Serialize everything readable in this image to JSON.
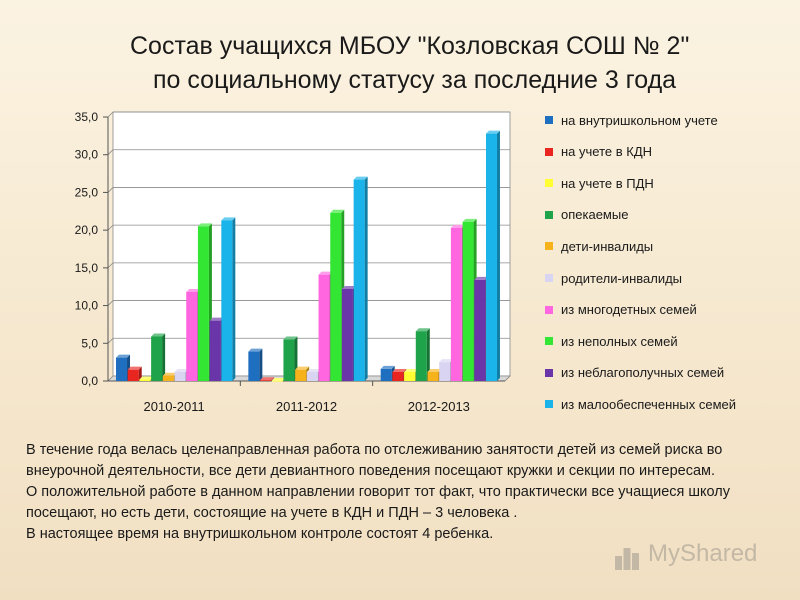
{
  "title": {
    "line1": "Состав  учащихся МБОУ \"Козловская СОШ № 2\"",
    "line2": "по социальному статусу за последние 3 года"
  },
  "chart_data": {
    "type": "bar",
    "categories": [
      "2010-2011",
      "2011-2012",
      "2012-2013"
    ],
    "ylim": [
      0,
      35
    ],
    "yticks": [
      0,
      5,
      10,
      15,
      20,
      25,
      30,
      35
    ],
    "ytick_labels": [
      "0,0",
      "5,0",
      "10,0",
      "15,0",
      "20,0",
      "25,0",
      "30,0",
      "35,0"
    ],
    "grid": true,
    "legend_position": "right",
    "series": [
      {
        "name": "на внутришкольном учете",
        "color": "#1f6fc0",
        "values": [
          3.1,
          3.9,
          1.6
        ]
      },
      {
        "name": "на учете в КДН",
        "color": "#e8251f",
        "values": [
          1.5,
          0.1,
          1.2
        ]
      },
      {
        "name": "на учете в ПДН",
        "color": "#ffff33",
        "values": [
          0.2,
          0.0,
          1.2
        ]
      },
      {
        "name": "опекаемые",
        "color": "#1fa34a",
        "values": [
          5.9,
          5.5,
          6.6
        ]
      },
      {
        "name": "дети-инвалиды",
        "color": "#f6b21b",
        "values": [
          0.7,
          1.5,
          1.2
        ]
      },
      {
        "name": "родители-инвалиды",
        "color": "#d9d4f2",
        "values": [
          1.2,
          1.2,
          2.5
        ]
      },
      {
        "name": "из многодетных семей",
        "color": "#ff66e0",
        "values": [
          11.8,
          14.1,
          20.3
        ]
      },
      {
        "name": "из неполных семей",
        "color": "#33e633",
        "values": [
          20.5,
          22.3,
          21.1
        ]
      },
      {
        "name": "из неблагополучных семей",
        "color": "#6a35a8",
        "values": [
          8.0,
          12.2,
          13.4
        ]
      },
      {
        "name": "из малообеспеченных семей",
        "color": "#1ab4ea",
        "values": [
          21.3,
          26.7,
          32.8
        ]
      }
    ]
  },
  "body": {
    "p1": "В течение года велась целенаправленная  работа по отслеживанию занятости детей из семей риска во внеурочной деятельности,  все дети девиантного поведения посещают кружки и секции по интересам.",
    "p2": "О положительной работе в данном направлении говорит тот факт, что практически все учащиеся школу посещают, но  есть  дети, состоящие  на  учете  в КДН  и ПДН – 3   человека .",
    "p3": "В настоящее время на внутришкольном контроле  состоят 4 ребенка."
  },
  "watermark": {
    "text": "MyShared",
    "icon": "podium-icon"
  }
}
